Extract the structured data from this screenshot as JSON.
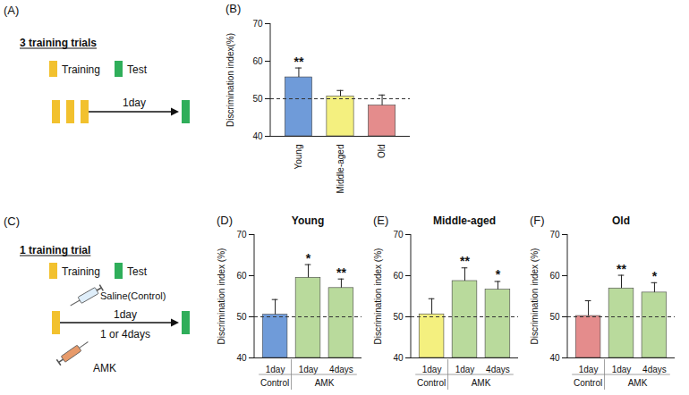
{
  "diagrams": [
    {
      "panel": "(A)",
      "title": "3 training trials",
      "legend": {
        "training": "Training",
        "test": "Test"
      },
      "timeline": {
        "training_blocks": 3,
        "interval": "1day"
      }
    },
    {
      "panel": "(C)",
      "title": "1 training trial",
      "legend": {
        "training": "Training",
        "test": "Test"
      },
      "timeline": {
        "training_blocks": 1,
        "interval_control": "1day",
        "interval_treatment": "1 or 4days",
        "control_label": "Saline(Control)",
        "treatment_label": "AMK"
      }
    }
  ],
  "chart_data": [
    {
      "panel": "(B)",
      "type": "bar",
      "categories": [
        "Young",
        "Middle-aged",
        "Old"
      ],
      "values": [
        55.7,
        50.6,
        48.2
      ],
      "errors": [
        2.5,
        1.6,
        2.8
      ],
      "significance": [
        "**",
        null,
        null
      ],
      "colors": [
        "#6f9bd9",
        "#f4f07f",
        "#e48c8c"
      ],
      "ylabel": "Discrimination index(%)",
      "ylim": [
        40,
        70
      ],
      "yticks": [
        40,
        50,
        60,
        70
      ],
      "reference_line": 50
    },
    {
      "panel": "(D)",
      "type": "bar",
      "title": "Young",
      "categories": [
        "1day",
        "1day",
        "4days"
      ],
      "groups": [
        "Control",
        "AMK",
        "AMK"
      ],
      "values": [
        50.5,
        59.5,
        57.0
      ],
      "errors": [
        3.7,
        3.2,
        2.2
      ],
      "significance": [
        null,
        "*",
        "**"
      ],
      "colors": [
        "#6f9bd9",
        "#b9da9c",
        "#b9da9c"
      ],
      "ylabel": "Discrimination index (%)",
      "ylim": [
        40,
        70
      ],
      "yticks": [
        40,
        50,
        60,
        70
      ],
      "reference_line": 50
    },
    {
      "panel": "(E)",
      "type": "bar",
      "title": "Middle-aged",
      "categories": [
        "1day",
        "1day",
        "4days"
      ],
      "groups": [
        "Control",
        "AMK",
        "AMK"
      ],
      "values": [
        50.6,
        58.7,
        56.6
      ],
      "errors": [
        3.8,
        3.2,
        2.0
      ],
      "significance": [
        null,
        "**",
        "*"
      ],
      "colors": [
        "#f4f07f",
        "#b9da9c",
        "#b9da9c"
      ],
      "ylabel": "Discrimination index (%)",
      "ylim": [
        40,
        70
      ],
      "yticks": [
        40,
        50,
        60,
        70
      ],
      "reference_line": 50
    },
    {
      "panel": "(F)",
      "type": "bar",
      "title": "Old",
      "categories": [
        "1day",
        "1day",
        "4days"
      ],
      "groups": [
        "Control",
        "AMK",
        "AMK"
      ],
      "values": [
        50.2,
        56.9,
        55.9
      ],
      "errors": [
        3.7,
        3.2,
        2.4
      ],
      "significance": [
        null,
        "**",
        "*"
      ],
      "colors": [
        "#e48c8c",
        "#b9da9c",
        "#b9da9c"
      ],
      "ylabel": "Discrimination index (%)",
      "ylim": [
        40,
        70
      ],
      "yticks": [
        40,
        50,
        60,
        70
      ],
      "reference_line": 50
    }
  ]
}
